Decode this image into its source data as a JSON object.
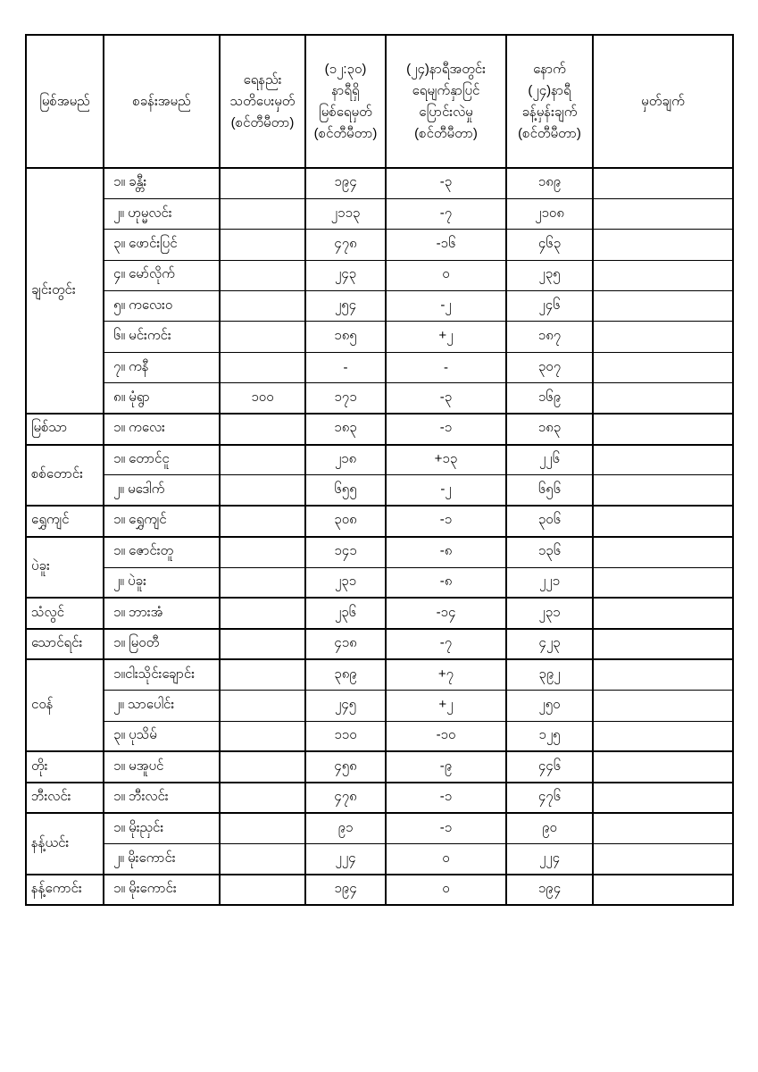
{
  "page": {
    "background": "#ffffff",
    "text_color": "#000000",
    "border_color": "#000000"
  },
  "table": {
    "headers": [
      "မြစ်အမည်",
      "စခန်းအမည်",
      "ရေနည်း\nသတိပေးမှတ်\n(စင်တီမီတာ)",
      "(၁၂:၃၀)\nနာရီရှိ\nမြစ်ရေမှတ်\n(စင်တီမီတာ)",
      "(၂၄)နာရီအတွင်း\nရေမျက်နှာပြင်\nပြောင်းလဲမှု\n(စင်တီမီတာ)",
      "နောက်\n(၂၄)နာရီ\nခန့်မှန်းချက်\n(စင်တီမီတာ)",
      "မှတ်ချက်"
    ],
    "groups": [
      {
        "river": "ချင်းတွင်း",
        "stations": [
          {
            "name": "၁။ ခန္တီး",
            "warning": "",
            "level": "၁၉၄",
            "change": "-၃",
            "forecast": "၁၈၉",
            "remark": ""
          },
          {
            "name": "၂။ ဟုမ္မလင်း",
            "warning": "",
            "level": "၂၁၁၃",
            "change": "-၇",
            "forecast": "၂၁၀၈",
            "remark": ""
          },
          {
            "name": "၃။ ဖောင်းပြင်",
            "warning": "",
            "level": "၄၇၈",
            "change": "-၁၆",
            "forecast": "၄၆၃",
            "remark": ""
          },
          {
            "name": "၄။ မော်လိုက်",
            "warning": "",
            "level": "၂၄၃",
            "change": "၀",
            "forecast": "၂၃၅",
            "remark": ""
          },
          {
            "name": "၅။ ကလေးဝ",
            "warning": "",
            "level": "၂၅၄",
            "change": "-၂",
            "forecast": "၂၄၆",
            "remark": ""
          },
          {
            "name": "၆။ မင်းကင်း",
            "warning": "",
            "level": "၁၈၅",
            "change": "+၂",
            "forecast": "၁၈၇",
            "remark": ""
          },
          {
            "name": "၇။ ကနီ",
            "warning": "",
            "level": "-",
            "change": "-",
            "forecast": "၃၀၇",
            "remark": ""
          },
          {
            "name": "၈။ မုံရွာ",
            "warning": "၁၀၀",
            "level": "၁၇၁",
            "change": "-၃",
            "forecast": "၁၆၉",
            "remark": ""
          }
        ]
      },
      {
        "river": "မြစ်သာ",
        "stations": [
          {
            "name": "၁။ ကလေး",
            "warning": "",
            "level": "၁၈၃",
            "change": "-၁",
            "forecast": "၁၈၃",
            "remark": ""
          }
        ]
      },
      {
        "river": "စစ်တောင်း",
        "stations": [
          {
            "name": "၁။ တောင်ငူ",
            "warning": "",
            "level": "၂၁၈",
            "change": "+၁၃",
            "forecast": "၂၂၆",
            "remark": ""
          },
          {
            "name": "၂။ မဒေါက်",
            "warning": "",
            "level": "၆၅၅",
            "change": "-၂",
            "forecast": "၆၅၆",
            "remark": ""
          }
        ]
      },
      {
        "river": "ရွှေကျင်",
        "stations": [
          {
            "name": "၁။ ရွှေကျင်",
            "warning": "",
            "level": "၃၀၈",
            "change": "-၁",
            "forecast": "၃၀၆",
            "remark": ""
          }
        ]
      },
      {
        "river": "ပဲခူး",
        "stations": [
          {
            "name": "၁။ ဇောင်းတူ",
            "warning": "",
            "level": "၁၄၁",
            "change": "-၈",
            "forecast": "၁၃၆",
            "remark": ""
          },
          {
            "name": "၂။ ပဲခူး",
            "warning": "",
            "level": "၂၃၁",
            "change": "-၈",
            "forecast": "၂၂၁",
            "remark": ""
          }
        ]
      },
      {
        "river": "သံလွင်",
        "stations": [
          {
            "name": "၁။ ဘားအံ",
            "warning": "",
            "level": "၂၃၆",
            "change": "-၁၄",
            "forecast": "၂၃၁",
            "remark": ""
          }
        ]
      },
      {
        "river": "သောင်ရင်း",
        "stations": [
          {
            "name": "၁။ မြဝတီ",
            "warning": "",
            "level": "၄၁၈",
            "change": "-၇",
            "forecast": "၄၂၃",
            "remark": ""
          }
        ]
      },
      {
        "river": "ငဝန်",
        "stations": [
          {
            "name": "၁။ငါးသိုင်းချောင်း",
            "warning": "",
            "level": "၃၈၉",
            "change": "+၇",
            "forecast": "၃၉၂",
            "remark": ""
          },
          {
            "name": "၂။ သာပေါင်း",
            "warning": "",
            "level": "၂၄၅",
            "change": "+၂",
            "forecast": "၂၅၀",
            "remark": ""
          },
          {
            "name": "၃။ ပုသိမ်",
            "warning": "",
            "level": "၁၁၀",
            "change": "-၁၀",
            "forecast": "၁၂၅",
            "remark": ""
          }
        ]
      },
      {
        "river": "တိုး",
        "stations": [
          {
            "name": "၁။ မအူပင်",
            "warning": "",
            "level": "၄၅၈",
            "change": "-၉",
            "forecast": "၄၄၆",
            "remark": ""
          }
        ]
      },
      {
        "river": "ဘီးလင်း",
        "stations": [
          {
            "name": "၁။ ဘီးလင်း",
            "warning": "",
            "level": "၄၇၈",
            "change": "-၁",
            "forecast": "၄၇၆",
            "remark": ""
          }
        ]
      },
      {
        "river": "နန့်ယင်း",
        "stations": [
          {
            "name": "၁။ မိုးညှင်း",
            "warning": "",
            "level": "၉၁",
            "change": "-၁",
            "forecast": "၉၀",
            "remark": ""
          },
          {
            "name": "၂။ မိုးကောင်း",
            "warning": "",
            "level": "၂၂၄",
            "change": "၀",
            "forecast": "၂၂၄",
            "remark": ""
          }
        ]
      },
      {
        "river": "နန့်ကောင်း",
        "stations": [
          {
            "name": "၁။ မိုးကောင်း",
            "warning": "",
            "level": "၁၉၄",
            "change": "၀",
            "forecast": "၁၉၄",
            "remark": ""
          }
        ]
      }
    ]
  }
}
